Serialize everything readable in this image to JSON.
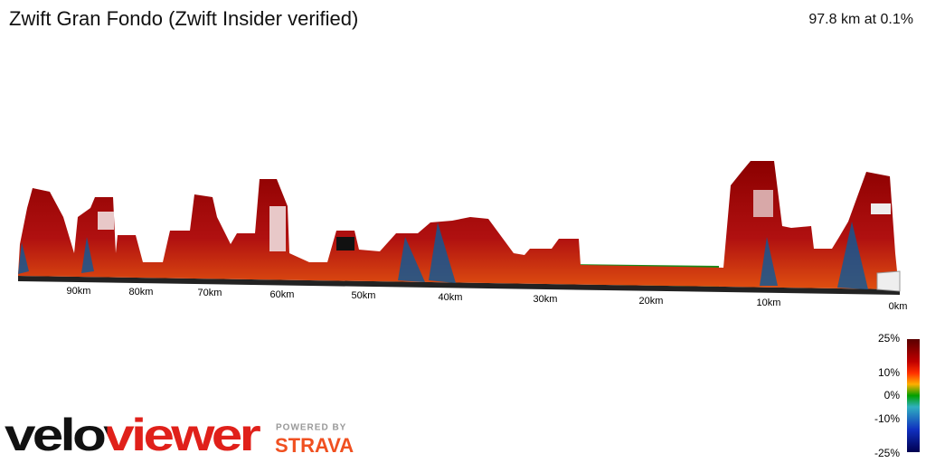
{
  "header": {
    "title": "Zwift Gran Fondo (Zwift Insider verified)",
    "summary": "97.8 km at 0.1%"
  },
  "distance_labels": [
    "90km",
    "80km",
    "70km",
    "60km",
    "50km",
    "40km",
    "30km",
    "20km",
    "10km",
    "0km"
  ],
  "gradient_scale": [
    "25%",
    "10%",
    "0%",
    "-10%",
    "-25%"
  ],
  "branding": {
    "logo": "veloviewer",
    "powered_by": "POWERED BY",
    "partner": "STRAVA"
  }
}
